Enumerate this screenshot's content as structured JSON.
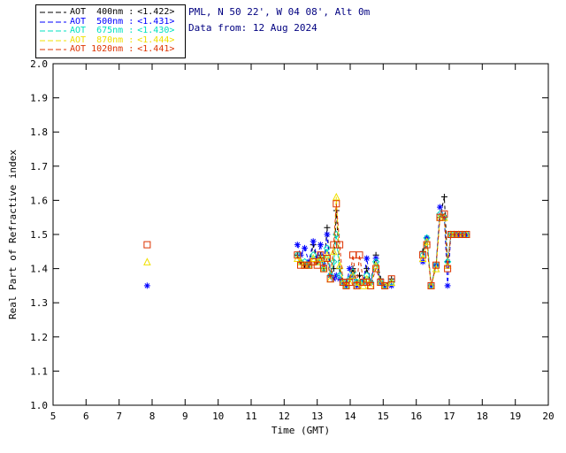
{
  "header": {
    "line1": "PML, N 50 22', W 04 08', Alt 0m",
    "line2": "Data from: 12 Aug 2024",
    "color": "#000080"
  },
  "legend": {
    "items": [
      {
        "label": "AOT  400nm :",
        "value": "<1.422>",
        "color": "#000000"
      },
      {
        "label": "AOT  500nm :",
        "value": "<1.431>",
        "color": "#0000ff"
      },
      {
        "label": "AOT  675nm :",
        "value": "<1.430>",
        "color": "#00e0c0"
      },
      {
        "label": "AOT  870nm :",
        "value": "<1.444>",
        "color": "#f0e000"
      },
      {
        "label": "AOT 1020nm :",
        "value": "<1.441>",
        "color": "#dd3300"
      }
    ]
  },
  "chart_data": {
    "type": "line",
    "title": "",
    "xlabel": "Time (GMT)",
    "ylabel": "Real Part of Refractive index",
    "xlim": [
      5,
      20
    ],
    "ylim": [
      1.0,
      2.0
    ],
    "x_ticks": [
      5,
      6,
      7,
      8,
      9,
      10,
      11,
      12,
      13,
      14,
      15,
      16,
      17,
      18,
      19,
      20
    ],
    "y_ticks": [
      "1.0",
      "1.1",
      "1.2",
      "1.3",
      "1.4",
      "1.5",
      "1.6",
      "1.7",
      "1.8",
      "1.9",
      "2.0"
    ],
    "grid": false,
    "legend_position": "top-left",
    "line_style": "dashed",
    "series": [
      {
        "name": "AOT 400nm",
        "color": "#000000",
        "marker": "plus",
        "segments": [
          {
            "x": [
              12.4,
              12.5,
              12.62,
              12.75,
              12.88,
              13.0,
              13.1,
              13.2,
              13.3,
              13.4,
              13.5,
              13.58,
              13.68,
              13.78,
              13.88,
              13.98,
              14.08,
              14.2,
              14.28,
              14.4,
              14.5,
              14.62,
              14.78,
              14.92,
              15.05,
              15.25
            ],
            "y": [
              1.44,
              1.42,
              1.41,
              1.41,
              1.47,
              1.42,
              1.44,
              1.4,
              1.52,
              1.38,
              1.4,
              1.57,
              1.4,
              1.36,
              1.35,
              1.37,
              1.4,
              1.36,
              1.38,
              1.36,
              1.4,
              1.36,
              1.44,
              1.37,
              1.35,
              1.37
            ]
          },
          {
            "x": [
              16.2,
              16.32,
              16.45,
              16.6,
              16.72,
              16.85,
              16.95,
              17.05,
              17.15,
              17.28,
              17.4,
              17.52
            ],
            "y": [
              1.45,
              1.49,
              1.35,
              1.41,
              1.55,
              1.61,
              1.42,
              1.5,
              1.5,
              1.5,
              1.5,
              1.5
            ]
          }
        ]
      },
      {
        "name": "AOT 500nm",
        "color": "#0000ff",
        "marker": "asterisk",
        "segments": [
          {
            "x": [
              7.85
            ],
            "y": [
              1.35
            ]
          },
          {
            "x": [
              12.4,
              12.5,
              12.62,
              12.75,
              12.88,
              13.0,
              13.1,
              13.2,
              13.3,
              13.4,
              13.5,
              13.58,
              13.68,
              13.78,
              13.88,
              13.98,
              14.08,
              14.2,
              14.28,
              14.4,
              14.5,
              14.62,
              14.78,
              14.92,
              15.05,
              15.25
            ],
            "y": [
              1.47,
              1.44,
              1.46,
              1.42,
              1.48,
              1.43,
              1.47,
              1.41,
              1.5,
              1.38,
              1.37,
              1.38,
              1.37,
              1.36,
              1.35,
              1.4,
              1.38,
              1.35,
              1.36,
              1.36,
              1.43,
              1.36,
              1.43,
              1.36,
              1.35,
              1.35
            ]
          },
          {
            "x": [
              16.2,
              16.32,
              16.45,
              16.6,
              16.72,
              16.85,
              16.95,
              17.05,
              17.15,
              17.28,
              17.4,
              17.52
            ],
            "y": [
              1.42,
              1.49,
              1.35,
              1.41,
              1.58,
              1.55,
              1.35,
              1.5,
              1.5,
              1.5,
              1.5,
              1.5
            ]
          }
        ]
      },
      {
        "name": "AOT 675nm",
        "color": "#00e0c0",
        "marker": "diamond",
        "segments": [
          {
            "x": [
              12.4,
              12.5,
              12.62,
              12.75,
              12.88,
              13.0,
              13.1,
              13.2,
              13.3,
              13.4,
              13.5,
              13.58,
              13.68,
              13.78,
              13.88,
              13.98,
              14.08,
              14.2,
              14.28,
              14.4,
              14.5,
              14.62,
              14.78,
              14.92,
              15.05,
              15.25
            ],
            "y": [
              1.44,
              1.42,
              1.42,
              1.41,
              1.44,
              1.42,
              1.43,
              1.4,
              1.46,
              1.38,
              1.42,
              1.5,
              1.38,
              1.36,
              1.35,
              1.37,
              1.39,
              1.36,
              1.36,
              1.36,
              1.38,
              1.36,
              1.42,
              1.36,
              1.35,
              1.36
            ]
          },
          {
            "x": [
              16.2,
              16.32,
              16.45,
              16.6,
              16.72,
              16.85,
              16.95,
              17.05,
              17.15,
              17.28,
              17.4,
              17.52
            ],
            "y": [
              1.44,
              1.49,
              1.35,
              1.41,
              1.56,
              1.55,
              1.42,
              1.5,
              1.5,
              1.5,
              1.5,
              1.5
            ]
          }
        ]
      },
      {
        "name": "AOT 870nm",
        "color": "#f0e000",
        "marker": "triangle",
        "segments": [
          {
            "x": [
              7.85
            ],
            "y": [
              1.42
            ]
          },
          {
            "x": [
              12.4,
              12.5,
              12.62,
              12.75,
              12.88,
              13.0,
              13.1,
              13.2,
              13.3,
              13.4,
              13.5,
              13.58,
              13.68,
              13.78,
              13.88,
              13.98,
              14.08,
              14.2,
              14.28,
              14.4,
              14.5,
              14.62,
              14.78,
              14.92,
              15.05,
              15.25
            ],
            "y": [
              1.43,
              1.42,
              1.41,
              1.41,
              1.43,
              1.42,
              1.43,
              1.4,
              1.44,
              1.37,
              1.45,
              1.61,
              1.41,
              1.36,
              1.35,
              1.36,
              1.38,
              1.35,
              1.36,
              1.35,
              1.37,
              1.35,
              1.41,
              1.36,
              1.35,
              1.36
            ]
          },
          {
            "x": [
              16.2,
              16.32,
              16.45,
              16.6,
              16.72,
              16.85,
              16.95,
              17.05,
              17.15,
              17.28,
              17.4,
              17.52
            ],
            "y": [
              1.43,
              1.48,
              1.35,
              1.4,
              1.55,
              1.55,
              1.41,
              1.5,
              1.5,
              1.5,
              1.5,
              1.5
            ]
          }
        ]
      },
      {
        "name": "AOT 1020nm",
        "color": "#dd3300",
        "marker": "square",
        "segments": [
          {
            "x": [
              7.85
            ],
            "y": [
              1.47
            ]
          },
          {
            "x": [
              12.4,
              12.5,
              12.62,
              12.75,
              12.88,
              13.0,
              13.1,
              13.2,
              13.3,
              13.4,
              13.5,
              13.58,
              13.68,
              13.78,
              13.88,
              13.98,
              14.08,
              14.2,
              14.28,
              14.4,
              14.5,
              14.62,
              14.78,
              14.92,
              15.05,
              15.25
            ],
            "y": [
              1.44,
              1.41,
              1.41,
              1.41,
              1.42,
              1.41,
              1.44,
              1.4,
              1.43,
              1.37,
              1.47,
              1.59,
              1.47,
              1.36,
              1.35,
              1.36,
              1.44,
              1.35,
              1.44,
              1.36,
              1.36,
              1.35,
              1.4,
              1.36,
              1.35,
              1.37
            ]
          },
          {
            "x": [
              16.2,
              16.32,
              16.45,
              16.6,
              16.72,
              16.85,
              16.95,
              17.05,
              17.15,
              17.28,
              17.4,
              17.52
            ],
            "y": [
              1.44,
              1.47,
              1.35,
              1.41,
              1.55,
              1.56,
              1.4,
              1.5,
              1.5,
              1.5,
              1.5,
              1.5
            ]
          }
        ]
      }
    ]
  }
}
